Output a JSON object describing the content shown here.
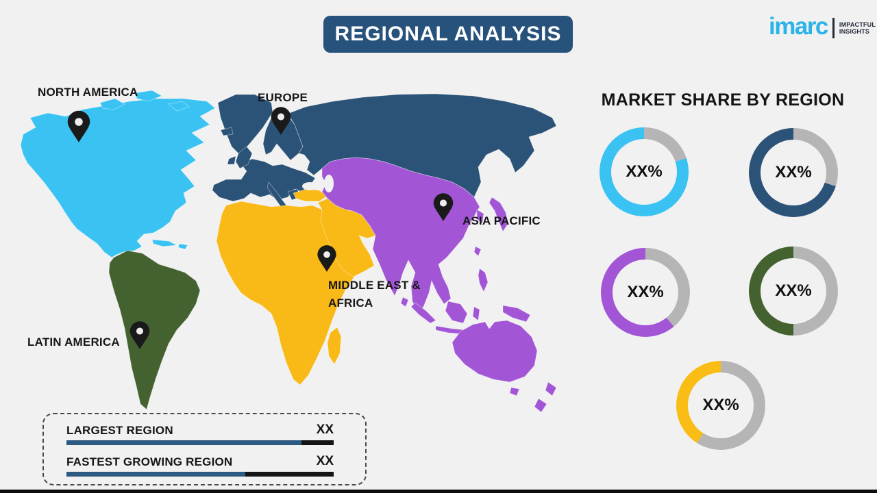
{
  "page": {
    "background": "#f1f1f2",
    "bottom_border_color": "#0d0d0d"
  },
  "header": {
    "title": "REGIONAL ANALYSIS",
    "title_bg": "#27527b",
    "title_text_color": "#ffffff"
  },
  "logo": {
    "brand": "imarc",
    "brand_color": "#2cb3e8",
    "tagline_line1": "IMPACTFUL",
    "tagline_line2": "INSIGHTS",
    "tagline_color": "#222c36"
  },
  "map": {
    "pin_color": "#1a1a1a",
    "pin_hole_color": "#ffffff",
    "regions": [
      {
        "id": "north-america",
        "label": "NORTH AMERICA",
        "color": "#3ac3f2"
      },
      {
        "id": "europe",
        "label": "EUROPE",
        "color": "#2b5277"
      },
      {
        "id": "asia-pacific",
        "label": "ASIA PACIFIC",
        "color": "#a256d6"
      },
      {
        "id": "middle-east-africa",
        "label_line1": "MIDDLE EAST &",
        "label_line2": "AFRICA",
        "color": "#f9b917"
      },
      {
        "id": "latin-america",
        "label": "LATIN AMERICA",
        "color": "#44622f"
      }
    ]
  },
  "market_share": {
    "heading": "MARKET SHARE BY REGION",
    "track_color": "#b5b5b5",
    "donuts": [
      {
        "region": "North America",
        "color": "#3ac3f2",
        "label": "XX%",
        "value_pct": 80
      },
      {
        "region": "Europe",
        "color": "#2b5277",
        "label": "XX%",
        "value_pct": 70
      },
      {
        "region": "Asia Pacific",
        "color": "#a256d6",
        "label": "XX%",
        "value_pct": 61
      },
      {
        "region": "Latin America",
        "color": "#44622f",
        "label": "XX%",
        "value_pct": 50
      },
      {
        "region": "Middle East & Africa",
        "color": "#f9bd16",
        "label": "XX%",
        "value_pct": 41
      }
    ]
  },
  "legend_box": {
    "bar_fill_color": "#2d5a81",
    "bar_rest_color": "#141414",
    "rows": [
      {
        "label": "LARGEST REGION",
        "value": "XX",
        "fill_pct": 88
      },
      {
        "label": "FASTEST GROWING REGION",
        "value": "XX",
        "fill_pct": 67
      }
    ]
  },
  "chart_data": [
    {
      "type": "pie",
      "variant": "donut",
      "title": "MARKET SHARE BY REGION",
      "note": "values shown as placeholder text XX%; colored arc fractions estimated from pixels",
      "series": [
        {
          "name": "North America",
          "label": "XX%",
          "color": "#3ac3f2",
          "colored_arc_pct": 80,
          "gray_arc_pct": 20
        },
        {
          "name": "Europe",
          "label": "XX%",
          "color": "#2b5277",
          "colored_arc_pct": 70,
          "gray_arc_pct": 30
        },
        {
          "name": "Asia Pacific",
          "label": "XX%",
          "color": "#a256d6",
          "colored_arc_pct": 61,
          "gray_arc_pct": 39
        },
        {
          "name": "Latin America",
          "label": "XX%",
          "color": "#44622f",
          "colored_arc_pct": 50,
          "gray_arc_pct": 50
        },
        {
          "name": "Middle East & Africa",
          "label": "XX%",
          "color": "#f9bd16",
          "colored_arc_pct": 41,
          "gray_arc_pct": 59
        }
      ],
      "legend_position": "none"
    },
    {
      "type": "bar",
      "title": "",
      "categories": [
        "LARGEST REGION",
        "FASTEST GROWING REGION"
      ],
      "values": [
        "XX",
        "XX"
      ],
      "bar_fill_pct": [
        88,
        67
      ],
      "orientation": "horizontal"
    }
  ]
}
